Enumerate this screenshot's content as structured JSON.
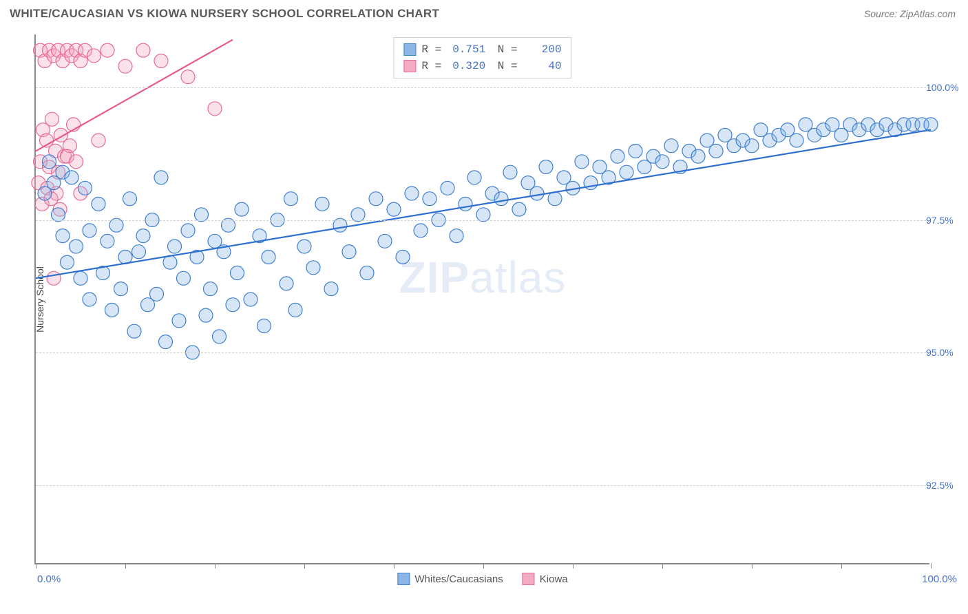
{
  "header": {
    "title": "WHITE/CAUCASIAN VS KIOWA NURSERY SCHOOL CORRELATION CHART",
    "source": "Source: ZipAtlas.com"
  },
  "chart": {
    "type": "scatter",
    "ylabel": "Nursery School",
    "xlim": [
      0,
      100
    ],
    "ylim": [
      91.0,
      101.0
    ],
    "xtick_positions": [
      0,
      10,
      20,
      30,
      40,
      50,
      60,
      70,
      80,
      90,
      100
    ],
    "yticks": [
      {
        "value": 92.5,
        "label": "92.5%"
      },
      {
        "value": 95.0,
        "label": "95.0%"
      },
      {
        "value": 97.5,
        "label": "97.5%"
      },
      {
        "value": 100.0,
        "label": "100.0%"
      }
    ],
    "xlabel_min": "0.0%",
    "xlabel_max": "100.0%",
    "point_radius": 10,
    "point_stroke_width": 1.2,
    "line_width": 2.2,
    "background_color": "#ffffff",
    "grid_color": "#d0d0d0",
    "axis_color": "#8a8a8a",
    "series": {
      "blue": {
        "name": "Whites/Caucasians",
        "color_fill": "#8cb6e6",
        "color_stroke": "#3f7fd0",
        "line_color": "#2f6fcf",
        "R": "0.751",
        "N": "200",
        "trend": {
          "x1": 0,
          "y1": 96.4,
          "x2": 100,
          "y2": 99.2
        }
      },
      "pink": {
        "name": "Kiowa",
        "color_fill": "#f4aac0",
        "color_stroke": "#e86a94",
        "line_color": "#e85a8a",
        "R": "0.320",
        "N": "40",
        "trend": {
          "x1": 0,
          "y1": 98.8,
          "x2": 22,
          "y2": 100.9
        }
      }
    },
    "points_blue": [
      [
        1,
        98.0
      ],
      [
        1.5,
        98.6
      ],
      [
        2,
        98.2
      ],
      [
        2.5,
        97.6
      ],
      [
        3,
        97.2
      ],
      [
        3,
        98.4
      ],
      [
        3.5,
        96.7
      ],
      [
        4,
        98.3
      ],
      [
        4.5,
        97.0
      ],
      [
        5,
        96.4
      ],
      [
        5.5,
        98.1
      ],
      [
        6,
        97.3
      ],
      [
        6,
        96.0
      ],
      [
        7,
        97.8
      ],
      [
        7.5,
        96.5
      ],
      [
        8,
        97.1
      ],
      [
        8.5,
        95.8
      ],
      [
        9,
        97.4
      ],
      [
        9.5,
        96.2
      ],
      [
        10,
        96.8
      ],
      [
        10.5,
        97.9
      ],
      [
        11,
        95.4
      ],
      [
        11.5,
        96.9
      ],
      [
        12,
        97.2
      ],
      [
        12.5,
        95.9
      ],
      [
        13,
        97.5
      ],
      [
        13.5,
        96.1
      ],
      [
        14,
        98.3
      ],
      [
        14.5,
        95.2
      ],
      [
        15,
        96.7
      ],
      [
        15.5,
        97.0
      ],
      [
        16,
        95.6
      ],
      [
        16.5,
        96.4
      ],
      [
        17,
        97.3
      ],
      [
        17.5,
        95.0
      ],
      [
        18,
        96.8
      ],
      [
        18.5,
        97.6
      ],
      [
        19,
        95.7
      ],
      [
        19.5,
        96.2
      ],
      [
        20,
        97.1
      ],
      [
        20.5,
        95.3
      ],
      [
        21,
        96.9
      ],
      [
        21.5,
        97.4
      ],
      [
        22,
        95.9
      ],
      [
        22.5,
        96.5
      ],
      [
        23,
        97.7
      ],
      [
        24,
        96.0
      ],
      [
        25,
        97.2
      ],
      [
        25.5,
        95.5
      ],
      [
        26,
        96.8
      ],
      [
        27,
        97.5
      ],
      [
        28,
        96.3
      ],
      [
        28.5,
        97.9
      ],
      [
        29,
        95.8
      ],
      [
        30,
        97.0
      ],
      [
        31,
        96.6
      ],
      [
        32,
        97.8
      ],
      [
        33,
        96.2
      ],
      [
        34,
        97.4
      ],
      [
        35,
        96.9
      ],
      [
        36,
        97.6
      ],
      [
        37,
        96.5
      ],
      [
        38,
        97.9
      ],
      [
        39,
        97.1
      ],
      [
        40,
        97.7
      ],
      [
        41,
        96.8
      ],
      [
        42,
        98.0
      ],
      [
        43,
        97.3
      ],
      [
        44,
        97.9
      ],
      [
        45,
        97.5
      ],
      [
        46,
        98.1
      ],
      [
        47,
        97.2
      ],
      [
        48,
        97.8
      ],
      [
        49,
        98.3
      ],
      [
        50,
        97.6
      ],
      [
        51,
        98.0
      ],
      [
        52,
        97.9
      ],
      [
        53,
        98.4
      ],
      [
        54,
        97.7
      ],
      [
        55,
        98.2
      ],
      [
        56,
        98.0
      ],
      [
        57,
        98.5
      ],
      [
        58,
        97.9
      ],
      [
        59,
        98.3
      ],
      [
        60,
        98.1
      ],
      [
        61,
        98.6
      ],
      [
        62,
        98.2
      ],
      [
        63,
        98.5
      ],
      [
        64,
        98.3
      ],
      [
        65,
        98.7
      ],
      [
        66,
        98.4
      ],
      [
        67,
        98.8
      ],
      [
        68,
        98.5
      ],
      [
        69,
        98.7
      ],
      [
        70,
        98.6
      ],
      [
        71,
        98.9
      ],
      [
        72,
        98.5
      ],
      [
        73,
        98.8
      ],
      [
        74,
        98.7
      ],
      [
        75,
        99.0
      ],
      [
        76,
        98.8
      ],
      [
        77,
        99.1
      ],
      [
        78,
        98.9
      ],
      [
        79,
        99.0
      ],
      [
        80,
        98.9
      ],
      [
        81,
        99.2
      ],
      [
        82,
        99.0
      ],
      [
        83,
        99.1
      ],
      [
        84,
        99.2
      ],
      [
        85,
        99.0
      ],
      [
        86,
        99.3
      ],
      [
        87,
        99.1
      ],
      [
        88,
        99.2
      ],
      [
        89,
        99.3
      ],
      [
        90,
        99.1
      ],
      [
        91,
        99.3
      ],
      [
        92,
        99.2
      ],
      [
        93,
        99.3
      ],
      [
        94,
        99.2
      ],
      [
        95,
        99.3
      ],
      [
        96,
        99.2
      ],
      [
        97,
        99.3
      ],
      [
        98,
        99.3
      ],
      [
        99,
        99.3
      ],
      [
        100,
        99.3
      ]
    ],
    "points_pink": [
      [
        0.5,
        100.7
      ],
      [
        1,
        100.5
      ],
      [
        1.5,
        100.7
      ],
      [
        2,
        100.6
      ],
      [
        2.5,
        100.7
      ],
      [
        3,
        100.5
      ],
      [
        3.5,
        100.7
      ],
      [
        4,
        100.6
      ],
      [
        4.5,
        100.7
      ],
      [
        5,
        100.5
      ],
      [
        0.8,
        99.2
      ],
      [
        1.2,
        99.0
      ],
      [
        1.8,
        99.4
      ],
      [
        2.2,
        98.8
      ],
      [
        2.8,
        99.1
      ],
      [
        3.2,
        98.7
      ],
      [
        3.8,
        98.9
      ],
      [
        4.2,
        99.3
      ],
      [
        0.5,
        98.6
      ],
      [
        1.5,
        98.5
      ],
      [
        2.5,
        98.4
      ],
      [
        3.5,
        98.7
      ],
      [
        4.5,
        98.6
      ],
      [
        0.3,
        98.2
      ],
      [
        1.3,
        98.1
      ],
      [
        2.3,
        98.0
      ],
      [
        0.7,
        97.8
      ],
      [
        1.7,
        97.9
      ],
      [
        2.7,
        97.7
      ],
      [
        5.5,
        100.7
      ],
      [
        6.5,
        100.6
      ],
      [
        8,
        100.7
      ],
      [
        10,
        100.4
      ],
      [
        12,
        100.7
      ],
      [
        14,
        100.5
      ],
      [
        17,
        100.2
      ],
      [
        20,
        99.6
      ],
      [
        7,
        99.0
      ],
      [
        5,
        98.0
      ],
      [
        2,
        96.4
      ]
    ]
  },
  "watermark": {
    "bold": "ZIP",
    "rest": "atlas"
  }
}
